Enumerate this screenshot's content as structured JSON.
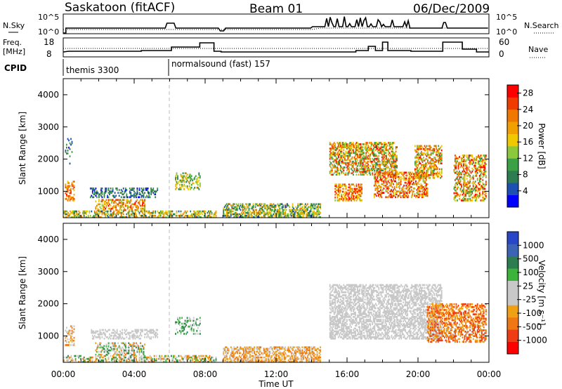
{
  "header": {
    "title_left": "Saskatoon (fitACF)",
    "title_center": "Beam 01",
    "title_right": "06/Dec/2009"
  },
  "top_panels": {
    "nsky_label": "N.Sky",
    "nsearch_label": "N.Search",
    "noise_ticks": [
      "10^5",
      "10^0"
    ],
    "freq_label_1": "Freq.",
    "freq_label_2": "[MHz]",
    "freq_ticks": [
      "18",
      "8"
    ],
    "nave_label": "Nave",
    "nave_ticks": [
      "60",
      "0"
    ],
    "cpid_label": "CPID",
    "cpid_segments": [
      "themis 3300",
      "normalsound (fast) 157"
    ]
  },
  "colors": {
    "power": [
      "#0000ff",
      "#1e50b4",
      "#2e7d50",
      "#3ca046",
      "#8cc83c",
      "#f0c800",
      "#f0a000",
      "#f07800",
      "#f03c00",
      "#ff0000"
    ],
    "velocity": [
      "#2846c8",
      "#3c64b4",
      "#2e7d50",
      "#3cb43c",
      "#c8c8c8",
      "#c8c8c8",
      "#f0a014",
      "#f07814",
      "#f03c14",
      "#ff0000"
    ],
    "ground_grey": "#c8c8c8"
  },
  "chart_data": [
    {
      "type": "heatmap",
      "name": "power-panel",
      "ylabel": "Slant Range [km]",
      "xlabel": "Time UT",
      "x_ticks": [
        "00:00",
        "04:00",
        "08:00",
        "12:00",
        "16:00",
        "20:00",
        "00:00"
      ],
      "y_ticks": [
        1000,
        2000,
        3000,
        4000
      ],
      "xlim_hours": [
        0,
        24
      ],
      "ylim_km": [
        180,
        4500
      ],
      "colorbar_label": "Power [dB]",
      "colorbar_ticks": [
        "4",
        "8",
        "12",
        "16",
        "20",
        "24",
        "28"
      ],
      "colorbar_range": [
        0,
        30
      ],
      "regions": [
        {
          "t0": 0.1,
          "t1": 0.6,
          "r0": 700,
          "r1": 1300,
          "v0": 16,
          "v1": 28,
          "density": 0.45
        },
        {
          "t0": 0.1,
          "t1": 0.5,
          "r0": 1800,
          "r1": 2700,
          "v0": 2,
          "v1": 12,
          "density": 0.18
        },
        {
          "t0": 1.5,
          "t1": 5.3,
          "r0": 800,
          "r1": 1100,
          "v0": 2,
          "v1": 12,
          "density": 0.4
        },
        {
          "t0": 1.8,
          "t1": 4.6,
          "r0": 400,
          "r1": 750,
          "v0": 12,
          "v1": 28,
          "density": 0.45
        },
        {
          "t0": 6.3,
          "t1": 7.7,
          "r0": 1050,
          "r1": 1550,
          "v0": 6,
          "v1": 20,
          "density": 0.35
        },
        {
          "t0": 0.0,
          "t1": 8.6,
          "r0": 180,
          "r1": 400,
          "v0": 4,
          "v1": 24,
          "density": 0.5
        },
        {
          "t0": 9.0,
          "t1": 14.5,
          "r0": 180,
          "r1": 600,
          "v0": 4,
          "v1": 22,
          "density": 0.55
        },
        {
          "t0": 15.0,
          "t1": 18.8,
          "r0": 1500,
          "r1": 2500,
          "v0": 8,
          "v1": 28,
          "density": 0.55
        },
        {
          "t0": 15.3,
          "t1": 16.8,
          "r0": 700,
          "r1": 1200,
          "v0": 14,
          "v1": 30,
          "density": 0.5
        },
        {
          "t0": 17.5,
          "t1": 20.5,
          "r0": 800,
          "r1": 1600,
          "v0": 14,
          "v1": 30,
          "density": 0.5
        },
        {
          "t0": 19.8,
          "t1": 21.3,
          "r0": 1400,
          "r1": 2400,
          "v0": 10,
          "v1": 28,
          "density": 0.55
        },
        {
          "t0": 22.0,
          "t1": 23.8,
          "r0": 700,
          "r1": 2100,
          "v0": 8,
          "v1": 30,
          "density": 0.45
        }
      ]
    },
    {
      "type": "heatmap",
      "name": "velocity-panel",
      "ylabel": "Slant Range [km]",
      "xlabel": "Time UT",
      "x_ticks": [
        "00:00",
        "04:00",
        "08:00",
        "12:00",
        "16:00",
        "20:00",
        "00:00"
      ],
      "y_ticks": [
        1000,
        2000,
        3000,
        4000
      ],
      "xlim_hours": [
        0,
        24
      ],
      "ylim_km": [
        180,
        4500
      ],
      "colorbar_label": "Velocity [m s⁻¹]",
      "colorbar_ticks": [
        "1000",
        "500",
        "100",
        "25",
        "-25",
        "-100",
        "-500",
        "-1000"
      ],
      "regions": [
        {
          "t0": 0.1,
          "t1": 0.6,
          "r0": 700,
          "r1": 1300,
          "c0": 4,
          "c1": 7,
          "density": 0.35
        },
        {
          "t0": 1.5,
          "t1": 5.3,
          "r0": 900,
          "r1": 1200,
          "c0": 4,
          "c1": 5,
          "density": 0.4
        },
        {
          "t0": 1.8,
          "t1": 4.6,
          "r0": 400,
          "r1": 800,
          "c0": 2,
          "c1": 7,
          "density": 0.45
        },
        {
          "t0": 6.3,
          "t1": 7.7,
          "r0": 1050,
          "r1": 1550,
          "c0": 2,
          "c1": 4,
          "density": 0.3
        },
        {
          "t0": 0.0,
          "t1": 8.6,
          "r0": 180,
          "r1": 400,
          "c0": 2,
          "c1": 7,
          "density": 0.45
        },
        {
          "t0": 9.0,
          "t1": 14.5,
          "r0": 180,
          "r1": 650,
          "c0": 5,
          "c1": 7,
          "density": 0.55
        },
        {
          "t0": 15.0,
          "t1": 21.3,
          "r0": 900,
          "r1": 2600,
          "c0": 4,
          "c1": 5,
          "density": 0.55
        },
        {
          "t0": 20.5,
          "t1": 23.8,
          "r0": 800,
          "r1": 2000,
          "c0": 6,
          "c1": 8,
          "density": 0.5
        }
      ]
    }
  ]
}
